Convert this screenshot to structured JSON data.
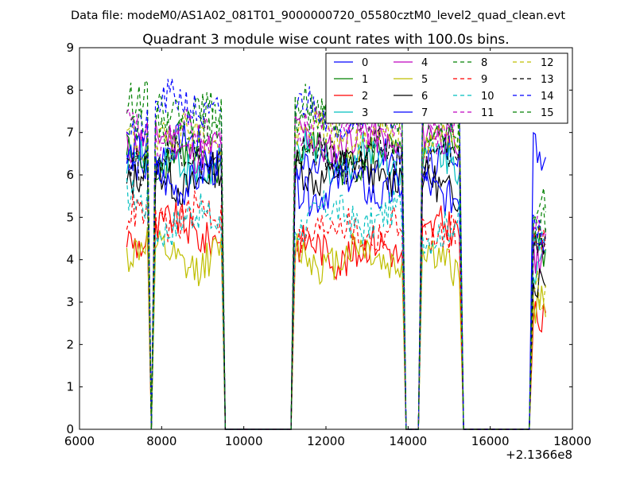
{
  "chart_data": {
    "type": "line",
    "suptitle": "Data file: modeM0/AS1A02_081T01_9000000720_05580cztM0_level2_quad_clean.evt",
    "title": "Quadrant 3 module wise count rates with 100.0s bins.",
    "xlabel": "",
    "ylabel": "",
    "x_offset_label": "+2.1366e8",
    "xlim": [
      6000,
      18000
    ],
    "ylim": [
      0,
      9
    ],
    "xticks": [
      6000,
      8000,
      10000,
      12000,
      14000,
      16000,
      18000
    ],
    "yticks": [
      0,
      1,
      2,
      3,
      4,
      5,
      6,
      7,
      8,
      9
    ],
    "grid": false,
    "legend_position": "top-right",
    "segments": [
      {
        "x_start": 7150,
        "x_end": 7650
      },
      {
        "x_start": 7850,
        "x_end": 9450
      },
      {
        "x_start": 11250,
        "x_end": 13850
      },
      {
        "x_start": 14350,
        "x_end": 15250
      },
      {
        "x_start": 17050,
        "x_end": 17350
      }
    ],
    "series": [
      {
        "name": "0",
        "color": "#0000ff",
        "style": "solid",
        "levels": [
          6.3,
          6.6,
          6.2,
          6.4,
          6.6
        ]
      },
      {
        "name": "1",
        "color": "#008000",
        "style": "solid",
        "levels": [
          6.5,
          6.3,
          6.4,
          6.6,
          4.4
        ]
      },
      {
        "name": "2",
        "color": "#ff0000",
        "style": "solid",
        "levels": [
          4.6,
          4.7,
          4.2,
          4.6,
          2.8
        ]
      },
      {
        "name": "3",
        "color": "#00bfbf",
        "style": "solid",
        "levels": [
          6.6,
          6.2,
          6.4,
          6.3,
          4.1
        ]
      },
      {
        "name": "4",
        "color": "#bf00bf",
        "style": "solid",
        "levels": [
          6.9,
          6.7,
          6.8,
          6.8,
          4.3
        ]
      },
      {
        "name": "5",
        "color": "#bfbf00",
        "style": "solid",
        "levels": [
          4.3,
          4.0,
          4.1,
          4.0,
          3.0
        ]
      },
      {
        "name": "6",
        "color": "#000000",
        "style": "solid",
        "levels": [
          5.9,
          5.9,
          6.1,
          5.8,
          3.5
        ]
      },
      {
        "name": "7",
        "color": "#0000ff",
        "style": "solid",
        "levels": [
          6.4,
          5.9,
          5.7,
          5.7,
          4.5
        ]
      },
      {
        "name": "8",
        "color": "#008000",
        "style": "dashed",
        "levels": [
          7.6,
          7.3,
          7.5,
          7.2,
          5.0
        ]
      },
      {
        "name": "9",
        "color": "#ff0000",
        "style": "dashed",
        "levels": [
          4.9,
          5.0,
          4.7,
          4.7,
          4.2
        ]
      },
      {
        "name": "10",
        "color": "#00bfbf",
        "style": "dashed",
        "levels": [
          5.3,
          4.9,
          5.0,
          4.8,
          4.2
        ]
      },
      {
        "name": "11",
        "color": "#bf00bf",
        "style": "dashed",
        "levels": [
          7.0,
          6.9,
          7.1,
          7.0,
          4.6
        ]
      },
      {
        "name": "12",
        "color": "#bfbf00",
        "style": "dashed",
        "levels": [
          6.8,
          6.9,
          6.9,
          6.8,
          3.3
        ]
      },
      {
        "name": "13",
        "color": "#000000",
        "style": "dashed",
        "levels": [
          6.4,
          6.4,
          6.4,
          6.3,
          4.6
        ]
      },
      {
        "name": "14",
        "color": "#0000ff",
        "style": "dashed",
        "levels": [
          7.3,
          7.6,
          7.5,
          7.4,
          4.9
        ]
      },
      {
        "name": "15",
        "color": "#008000",
        "style": "dashed",
        "levels": [
          7.5,
          7.3,
          7.5,
          7.3,
          5.1
        ]
      }
    ]
  }
}
